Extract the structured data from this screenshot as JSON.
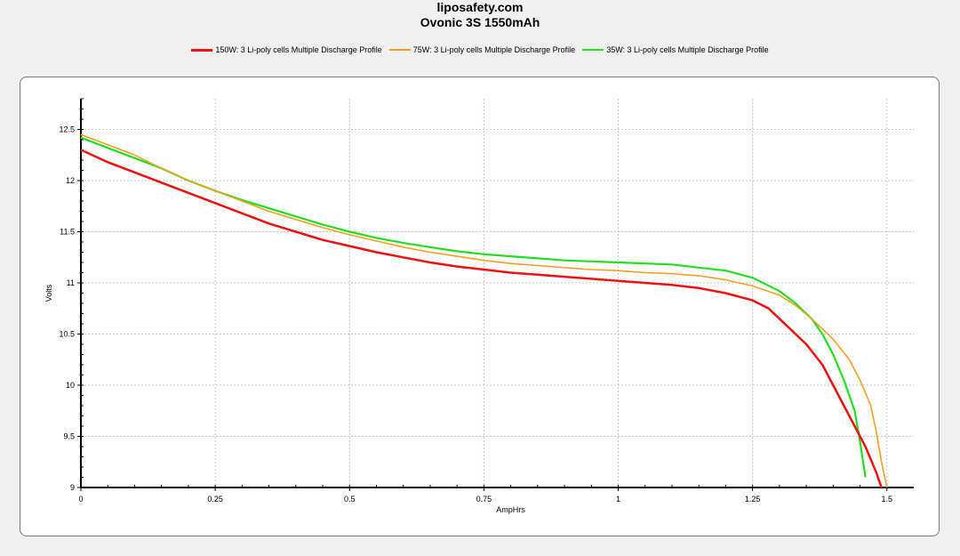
{
  "header": {
    "site": "liposafety.com",
    "title": "Ovonic 3S 1550mAh"
  },
  "chart_data": {
    "type": "line",
    "title": "Ovonic 3S 1550mAh",
    "xlabel": "AmpHrs",
    "ylabel": "Volts",
    "xlim": [
      0,
      1.55
    ],
    "ylim": [
      9,
      12.8
    ],
    "x_ticks": [
      "0",
      "0.25",
      "0.5",
      "0.75",
      "1",
      "1.25",
      "1.5"
    ],
    "y_ticks": [
      "9",
      "9.5",
      "10",
      "10.5",
      "11",
      "11.5",
      "12",
      "12.5"
    ],
    "grid": true,
    "legend_position": "top-center",
    "series": [
      {
        "name": "150W: 3 Li-poly cells Multiple Discharge Profile",
        "color": "#ee1111",
        "x": [
          0,
          0.05,
          0.1,
          0.15,
          0.2,
          0.25,
          0.3,
          0.35,
          0.4,
          0.45,
          0.5,
          0.55,
          0.6,
          0.65,
          0.7,
          0.75,
          0.8,
          0.85,
          0.9,
          0.95,
          1.0,
          1.05,
          1.1,
          1.15,
          1.2,
          1.25,
          1.28,
          1.3,
          1.33,
          1.35,
          1.38,
          1.4,
          1.42,
          1.44,
          1.46,
          1.48,
          1.49
        ],
        "y": [
          12.3,
          12.18,
          12.08,
          11.98,
          11.88,
          11.78,
          11.68,
          11.58,
          11.5,
          11.42,
          11.36,
          11.3,
          11.25,
          11.2,
          11.16,
          11.13,
          11.1,
          11.08,
          11.06,
          11.04,
          11.02,
          11.0,
          10.98,
          10.95,
          10.9,
          10.83,
          10.75,
          10.65,
          10.5,
          10.4,
          10.2,
          10.0,
          9.8,
          9.6,
          9.4,
          9.15,
          9.0
        ]
      },
      {
        "name": "75W: 3 Li-poly cells Multiple Discharge Profile",
        "color": "#f5a020",
        "x": [
          0,
          0.05,
          0.1,
          0.15,
          0.2,
          0.25,
          0.3,
          0.35,
          0.4,
          0.45,
          0.5,
          0.55,
          0.6,
          0.65,
          0.7,
          0.75,
          0.8,
          0.85,
          0.9,
          0.95,
          1.0,
          1.05,
          1.1,
          1.15,
          1.2,
          1.25,
          1.3,
          1.33,
          1.36,
          1.4,
          1.43,
          1.45,
          1.47,
          1.48,
          1.49,
          1.5
        ],
        "y": [
          12.45,
          12.35,
          12.25,
          12.12,
          12.0,
          11.9,
          11.8,
          11.7,
          11.62,
          11.54,
          11.47,
          11.41,
          11.35,
          11.3,
          11.26,
          11.22,
          11.19,
          11.17,
          11.15,
          11.13,
          11.12,
          11.1,
          11.09,
          11.07,
          11.03,
          10.97,
          10.88,
          10.78,
          10.65,
          10.45,
          10.25,
          10.05,
          9.8,
          9.55,
          9.25,
          9.0
        ]
      },
      {
        "name": "35W: 3 Li-poly cells Multiple Discharge Profile",
        "color": "#22dd22",
        "x": [
          0,
          0.05,
          0.1,
          0.15,
          0.2,
          0.25,
          0.3,
          0.35,
          0.4,
          0.45,
          0.5,
          0.55,
          0.6,
          0.65,
          0.7,
          0.75,
          0.8,
          0.85,
          0.9,
          0.95,
          1.0,
          1.05,
          1.1,
          1.15,
          1.2,
          1.25,
          1.3,
          1.33,
          1.36,
          1.38,
          1.4,
          1.42,
          1.44,
          1.45,
          1.46
        ],
        "y": [
          12.42,
          12.32,
          12.22,
          12.12,
          12.0,
          11.9,
          11.81,
          11.73,
          11.65,
          11.57,
          11.5,
          11.44,
          11.39,
          11.35,
          11.31,
          11.28,
          11.26,
          11.24,
          11.22,
          11.21,
          11.2,
          11.19,
          11.18,
          11.15,
          11.12,
          11.05,
          10.92,
          10.8,
          10.65,
          10.5,
          10.3,
          10.05,
          9.75,
          9.45,
          9.1
        ]
      }
    ]
  }
}
